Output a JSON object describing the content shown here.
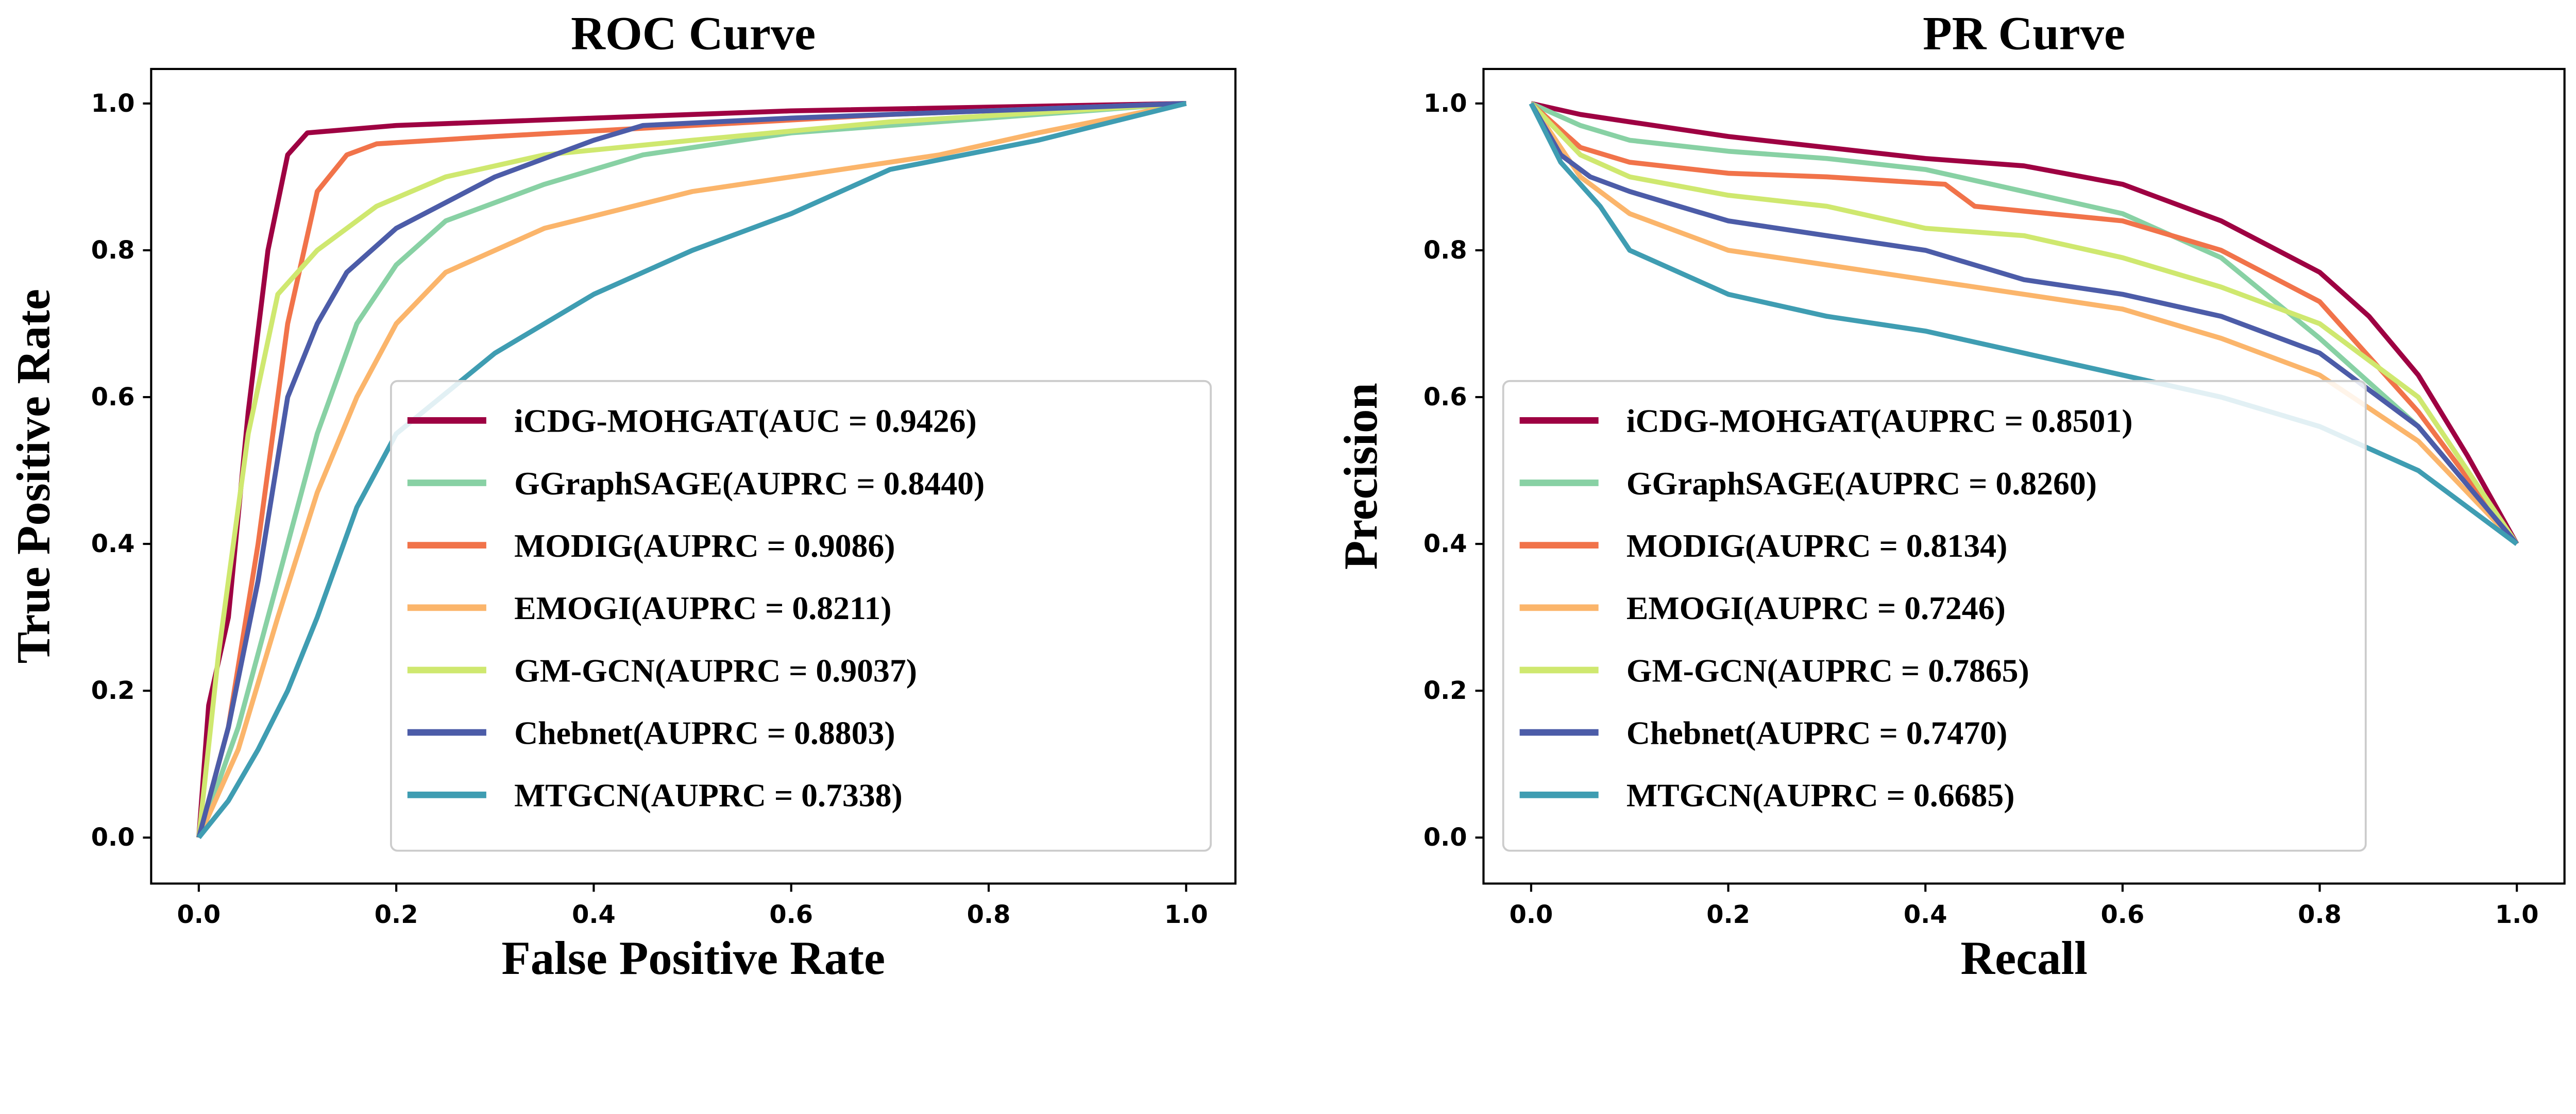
{
  "chart_data": [
    {
      "type": "line",
      "title": "ROC Curve",
      "xlabel": "False Positive Rate",
      "ylabel": "True Positive Rate",
      "xlim": [
        0,
        1
      ],
      "ylim": [
        0,
        1
      ],
      "xticks": [
        "0.0",
        "0.2",
        "0.4",
        "0.6",
        "0.8",
        "1.0"
      ],
      "yticks": [
        "0.0",
        "0.2",
        "0.4",
        "0.6",
        "0.8",
        "1.0"
      ],
      "grid": false,
      "legend_position": "lower-right",
      "series": [
        {
          "name": "iCDG-MOHGAT(AUC = 0.9426)",
          "color": "#9e0142",
          "x": [
            0,
            0.01,
            0.03,
            0.05,
            0.07,
            0.09,
            0.11,
            0.2,
            0.4,
            0.6,
            1
          ],
          "y": [
            0,
            0.18,
            0.3,
            0.58,
            0.8,
            0.93,
            0.96,
            0.97,
            0.98,
            0.99,
            1
          ]
        },
        {
          "name": "GGraphSAGE(AUPRC = 0.8440)",
          "color": "#88d1a4",
          "x": [
            0,
            0.04,
            0.08,
            0.12,
            0.16,
            0.2,
            0.25,
            0.35,
            0.45,
            0.6,
            0.8,
            1
          ],
          "y": [
            0,
            0.15,
            0.35,
            0.55,
            0.7,
            0.78,
            0.84,
            0.89,
            0.93,
            0.96,
            0.98,
            1
          ]
        },
        {
          "name": "MODIG(AUPRC = 0.9086)",
          "color": "#f1734a",
          "x": [
            0,
            0.03,
            0.06,
            0.09,
            0.12,
            0.15,
            0.18,
            0.3,
            0.5,
            0.7,
            1
          ],
          "y": [
            0,
            0.15,
            0.4,
            0.7,
            0.88,
            0.93,
            0.945,
            0.955,
            0.97,
            0.985,
            1
          ]
        },
        {
          "name": "EMOGI(AUPRC = 0.8211)",
          "color": "#fbb56b",
          "x": [
            0,
            0.04,
            0.08,
            0.12,
            0.16,
            0.2,
            0.25,
            0.35,
            0.5,
            0.6,
            0.75,
            0.85,
            1
          ],
          "y": [
            0,
            0.12,
            0.3,
            0.47,
            0.6,
            0.7,
            0.77,
            0.83,
            0.88,
            0.9,
            0.93,
            0.96,
            1
          ]
        },
        {
          "name": "GM-GCN(AUPRC = 0.9037)",
          "color": "#cfe86f",
          "x": [
            0,
            0.02,
            0.05,
            0.08,
            0.12,
            0.18,
            0.25,
            0.35,
            0.5,
            0.7,
            1
          ],
          "y": [
            0,
            0.25,
            0.55,
            0.74,
            0.8,
            0.86,
            0.9,
            0.93,
            0.95,
            0.975,
            1
          ]
        },
        {
          "name": "Chebnet(AUPRC = 0.8803)",
          "color": "#4c5ca8",
          "x": [
            0,
            0.03,
            0.06,
            0.09,
            0.12,
            0.15,
            0.2,
            0.3,
            0.4,
            0.45,
            0.6,
            1
          ],
          "y": [
            0,
            0.15,
            0.35,
            0.6,
            0.7,
            0.77,
            0.83,
            0.9,
            0.95,
            0.97,
            0.98,
            1
          ]
        },
        {
          "name": "MTGCN(AUPRC = 0.7338)",
          "color": "#3f9db2",
          "x": [
            0,
            0.03,
            0.06,
            0.09,
            0.12,
            0.16,
            0.2,
            0.3,
            0.4,
            0.5,
            0.6,
            0.7,
            0.85,
            1
          ],
          "y": [
            0,
            0.05,
            0.12,
            0.2,
            0.3,
            0.45,
            0.55,
            0.66,
            0.74,
            0.8,
            0.85,
            0.91,
            0.95,
            1
          ]
        }
      ]
    },
    {
      "type": "line",
      "title": "PR Curve",
      "xlabel": "Recall",
      "ylabel": "Precision",
      "xlim": [
        0,
        1
      ],
      "ylim": [
        0,
        1
      ],
      "xticks": [
        "0.0",
        "0.2",
        "0.4",
        "0.6",
        "0.8",
        "1.0"
      ],
      "yticks": [
        "0.0",
        "0.2",
        "0.4",
        "0.6",
        "0.8",
        "1.0"
      ],
      "grid": false,
      "legend_position": "lower-left",
      "series": [
        {
          "name": "iCDG-MOHGAT(AUPRC = 0.8501)",
          "color": "#9e0142",
          "x": [
            0,
            0.05,
            0.1,
            0.2,
            0.3,
            0.4,
            0.5,
            0.6,
            0.7,
            0.8,
            0.85,
            0.9,
            0.95,
            1
          ],
          "y": [
            1,
            0.985,
            0.975,
            0.955,
            0.94,
            0.925,
            0.915,
            0.89,
            0.84,
            0.77,
            0.71,
            0.63,
            0.52,
            0.4
          ]
        },
        {
          "name": "GGraphSAGE(AUPRC = 0.8260)",
          "color": "#88d1a4",
          "x": [
            0,
            0.05,
            0.1,
            0.2,
            0.3,
            0.4,
            0.5,
            0.6,
            0.7,
            0.8,
            0.9,
            1
          ],
          "y": [
            1,
            0.97,
            0.95,
            0.935,
            0.925,
            0.91,
            0.88,
            0.85,
            0.79,
            0.68,
            0.56,
            0.4
          ]
        },
        {
          "name": "MODIG(AUPRC = 0.8134)",
          "color": "#f1734a",
          "x": [
            0,
            0.05,
            0.1,
            0.2,
            0.3,
            0.42,
            0.45,
            0.6,
            0.7,
            0.8,
            0.9,
            1
          ],
          "y": [
            1,
            0.94,
            0.92,
            0.905,
            0.9,
            0.89,
            0.86,
            0.84,
            0.8,
            0.73,
            0.58,
            0.4
          ]
        },
        {
          "name": "EMOGI(AUPRC = 0.7246)",
          "color": "#fbb56b",
          "x": [
            0,
            0.05,
            0.1,
            0.2,
            0.3,
            0.4,
            0.5,
            0.6,
            0.7,
            0.8,
            0.9,
            1
          ],
          "y": [
            1,
            0.9,
            0.85,
            0.8,
            0.78,
            0.76,
            0.74,
            0.72,
            0.68,
            0.63,
            0.54,
            0.4
          ]
        },
        {
          "name": "GM-GCN(AUPRC = 0.7865)",
          "color": "#cfe86f",
          "x": [
            0,
            0.05,
            0.1,
            0.2,
            0.3,
            0.4,
            0.5,
            0.6,
            0.7,
            0.8,
            0.9,
            1
          ],
          "y": [
            1,
            0.93,
            0.9,
            0.875,
            0.86,
            0.83,
            0.82,
            0.79,
            0.75,
            0.7,
            0.6,
            0.4
          ]
        },
        {
          "name": "Chebnet(AUPRC = 0.7470)",
          "color": "#4c5ca8",
          "x": [
            0,
            0.03,
            0.06,
            0.1,
            0.15,
            0.2,
            0.3,
            0.4,
            0.5,
            0.6,
            0.7,
            0.8,
            0.9,
            1
          ],
          "y": [
            1,
            0.93,
            0.9,
            0.88,
            0.86,
            0.84,
            0.82,
            0.8,
            0.76,
            0.74,
            0.71,
            0.66,
            0.56,
            0.4
          ]
        },
        {
          "name": "MTGCN(AUPRC = 0.6685)",
          "color": "#3f9db2",
          "x": [
            0,
            0.03,
            0.07,
            0.1,
            0.2,
            0.3,
            0.4,
            0.5,
            0.6,
            0.7,
            0.8,
            0.9,
            1
          ],
          "y": [
            1,
            0.92,
            0.86,
            0.8,
            0.74,
            0.71,
            0.69,
            0.66,
            0.63,
            0.6,
            0.56,
            0.5,
            0.4
          ]
        }
      ]
    }
  ]
}
